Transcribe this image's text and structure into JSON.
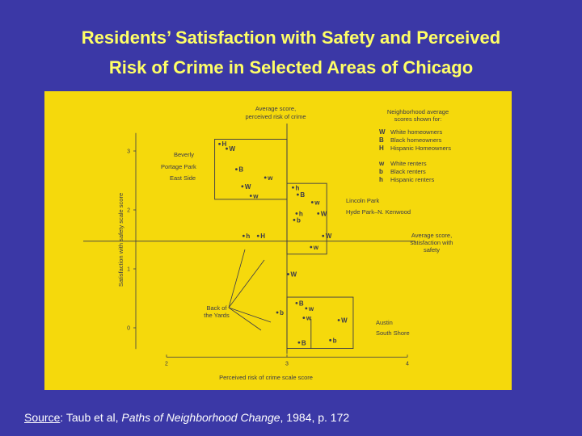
{
  "slide": {
    "title_line1": "Residents’ Satisfaction with Safety and Perceived",
    "title_line2": "Risk of Crime in Selected Areas of Chicago"
  },
  "source": {
    "label": "Source",
    "pre": ": Taub et al, ",
    "book": "Paths of Neighborhood Change",
    "post": ", 1984, p. 172"
  },
  "colors": {
    "background": "#3b38a6",
    "title": "#ffff66",
    "panel": "#f5d90c",
    "ink": "#3a3a4a"
  },
  "chart_data": {
    "type": "scatter",
    "xlabel": "Perceived risk of crime scale score",
    "ylabel": "Satisfaction with safety scale score",
    "xlim": [
      2,
      4
    ],
    "ylim": [
      -0.25,
      3.25
    ],
    "x_ticks": [
      2,
      3,
      4
    ],
    "y_ticks": [
      0,
      1,
      2,
      3
    ],
    "average_x": 3.0,
    "average_y": 1.47,
    "avg_x_label_line1": "Average score,",
    "avg_x_label_line2": "perceived risk of crime",
    "avg_y_label_line1": "Average score,",
    "avg_y_label_line2": "satisfaction with",
    "avg_y_label_line3": "safety",
    "legend": {
      "title_line1": "Neighborhood average",
      "title_line2": "scores shown for:",
      "entries": [
        {
          "code": "W",
          "text": "White homeowners"
        },
        {
          "code": "B",
          "text": "Black homeowners"
        },
        {
          "code": "H",
          "text": "Hispanic Homeowners"
        },
        {
          "code": "w",
          "text": "White renters"
        },
        {
          "code": "b",
          "text": "Black renters"
        },
        {
          "code": "h",
          "text": "Hispanic renters"
        }
      ]
    },
    "area_labels": {
      "beverly": "Beverly",
      "portage": "Portage Park",
      "eastside": "East Side",
      "lincoln": "Lincoln Park",
      "hydepark": "Hyde Park–N. Kenwood",
      "backyards_line1": "Back of",
      "backyards_line2": "the Yards",
      "austin": "Austin",
      "southshore": "South Shore"
    },
    "points": [
      {
        "code": "H",
        "x": 2.44,
        "y": 3.12,
        "group": "upper-left"
      },
      {
        "code": "W",
        "x": 2.5,
        "y": 3.04,
        "group": "upper-left"
      },
      {
        "code": "B",
        "x": 2.58,
        "y": 2.69,
        "group": "upper-left"
      },
      {
        "code": "w",
        "x": 2.82,
        "y": 2.55,
        "group": "upper-left"
      },
      {
        "code": "W",
        "x": 2.63,
        "y": 2.4,
        "group": "upper-left"
      },
      {
        "code": "w",
        "x": 2.7,
        "y": 2.24,
        "group": "upper-left"
      },
      {
        "code": "h",
        "x": 3.05,
        "y": 2.38,
        "group": "upper-right"
      },
      {
        "code": "B",
        "x": 3.09,
        "y": 2.26,
        "group": "upper-right"
      },
      {
        "code": "w",
        "x": 3.21,
        "y": 2.13,
        "group": "upper-right"
      },
      {
        "code": "h",
        "x": 3.08,
        "y": 1.94,
        "group": "upper-right"
      },
      {
        "code": "W",
        "x": 3.26,
        "y": 1.94,
        "group": "upper-right"
      },
      {
        "code": "b",
        "x": 3.06,
        "y": 1.83,
        "group": "upper-right"
      },
      {
        "code": "h",
        "x": 2.64,
        "y": 1.56,
        "group": "middle"
      },
      {
        "code": "H",
        "x": 2.76,
        "y": 1.56,
        "group": "middle"
      },
      {
        "code": "W",
        "x": 3.3,
        "y": 1.56,
        "group": "upper-right"
      },
      {
        "code": "w",
        "x": 3.2,
        "y": 1.37,
        "group": "upper-right"
      },
      {
        "code": "W",
        "x": 3.01,
        "y": 0.91,
        "group": "lower"
      },
      {
        "code": "B",
        "x": 3.08,
        "y": 0.42,
        "group": "lower"
      },
      {
        "code": "w",
        "x": 3.16,
        "y": 0.33,
        "group": "lower"
      },
      {
        "code": "b",
        "x": 2.92,
        "y": 0.26,
        "group": "lower"
      },
      {
        "code": "w",
        "x": 3.14,
        "y": 0.17,
        "group": "lower"
      },
      {
        "code": "W",
        "x": 3.43,
        "y": 0.13,
        "group": "lower"
      },
      {
        "code": "B",
        "x": 3.1,
        "y": -0.25,
        "group": "lower"
      },
      {
        "code": "b",
        "x": 3.36,
        "y": -0.21,
        "group": "lower"
      }
    ]
  }
}
